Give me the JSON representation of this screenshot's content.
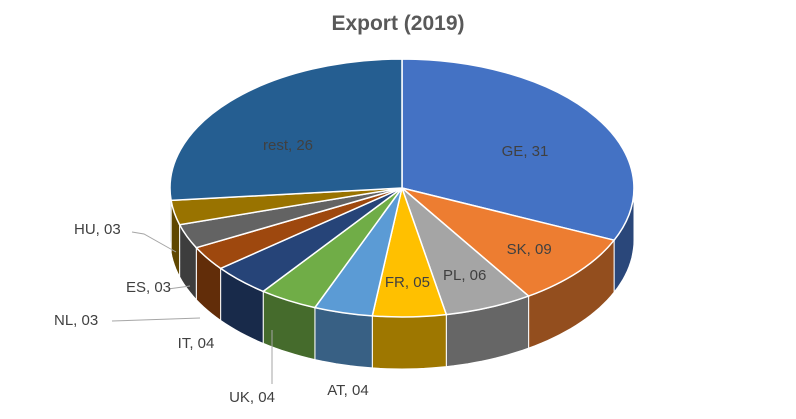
{
  "chart_data": {
    "type": "pie",
    "title": "Export (2019)",
    "slices": [
      {
        "name": "GE",
        "value": 31,
        "label": "GE, 31",
        "color": "#4472C4"
      },
      {
        "name": "SK",
        "value": 9,
        "label": "SK, 09",
        "color": "#ED7D31"
      },
      {
        "name": "PL",
        "value": 6,
        "label": "PL, 06",
        "color": "#A5A5A5"
      },
      {
        "name": "FR",
        "value": 5,
        "label": "FR, 05",
        "color": "#FFC000"
      },
      {
        "name": "AT",
        "value": 4,
        "label": "AT, 04",
        "color": "#5B9BD5"
      },
      {
        "name": "UK",
        "value": 4,
        "label": "UK, 04",
        "color": "#70AD47"
      },
      {
        "name": "IT",
        "value": 4,
        "label": "IT, 04",
        "color": "#264478"
      },
      {
        "name": "NL",
        "value": 3,
        "label": "NL, 03",
        "color": "#9E480E"
      },
      {
        "name": "ES",
        "value": 3,
        "label": "ES, 03",
        "color": "#636363"
      },
      {
        "name": "HU",
        "value": 3,
        "label": "HU, 03",
        "color": "#997300"
      },
      {
        "name": "rest",
        "value": 26,
        "label": "rest, 26",
        "color": "#255E91"
      }
    ],
    "legend": "none",
    "style": "3d-pie"
  }
}
